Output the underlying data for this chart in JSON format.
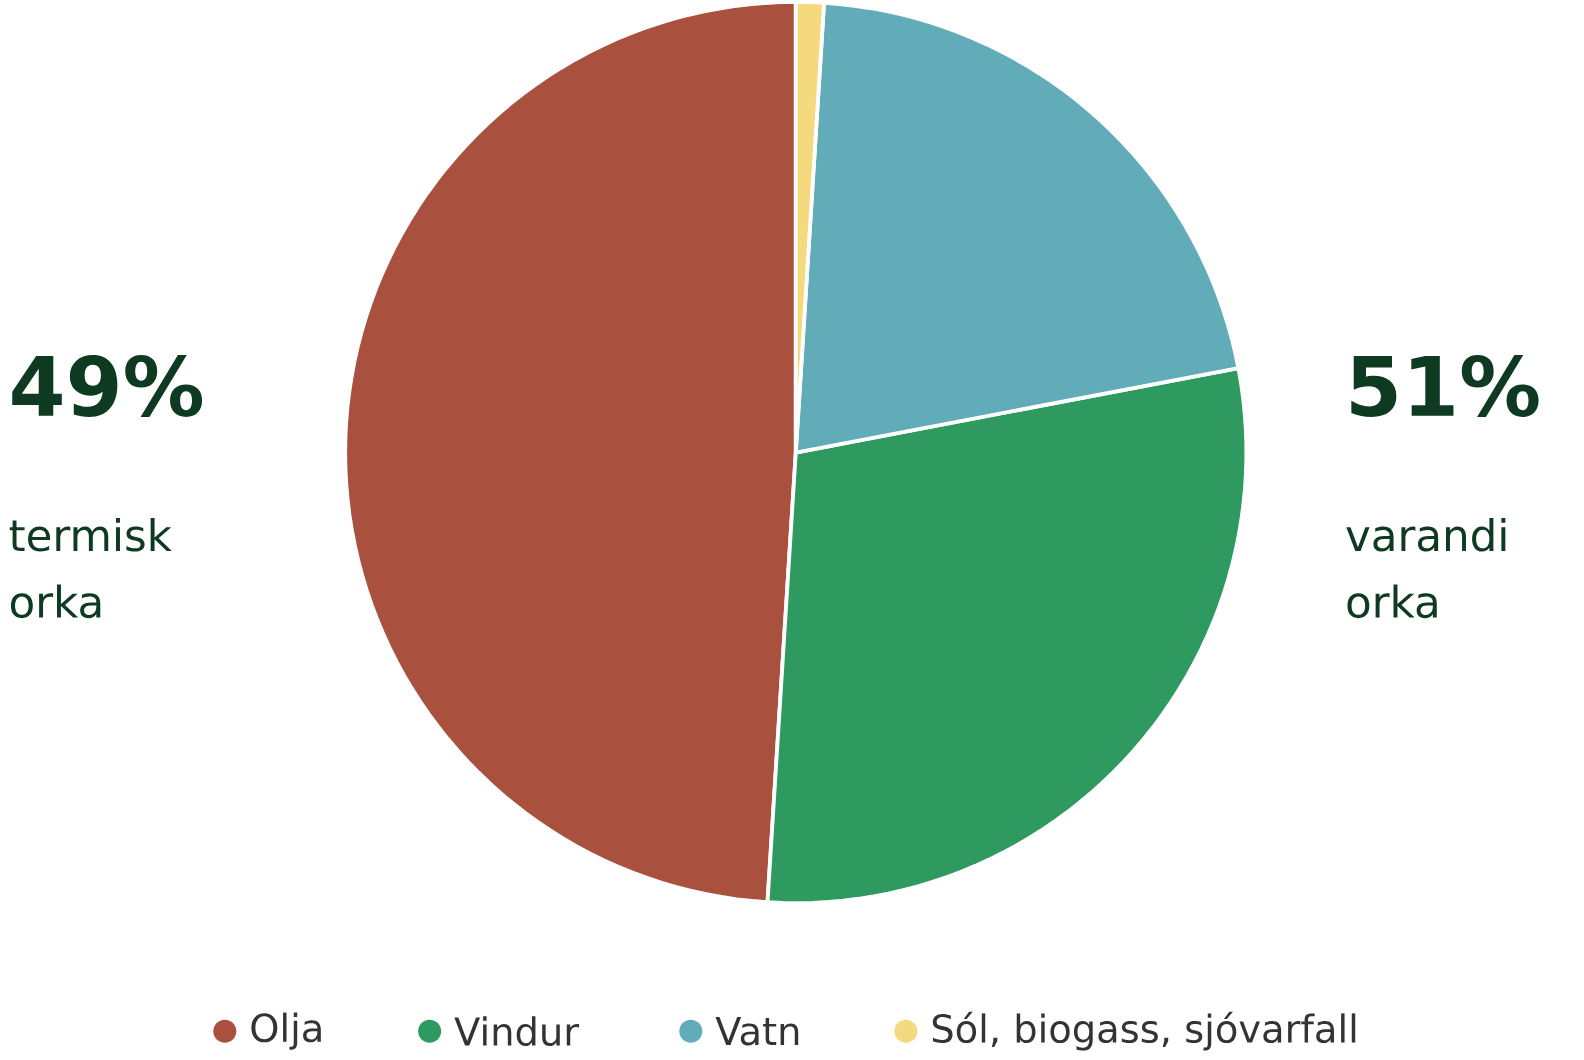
{
  "chart_data": {
    "type": "pie",
    "categories": [
      "Olja",
      "Vindur",
      "Vatn",
      "Sól, biogass, sjóvarfall"
    ],
    "values": [
      49,
      29,
      21,
      1
    ],
    "colors": [
      "#a9503f",
      "#2f9a60",
      "#62acba",
      "#f4d97f"
    ],
    "legend": "bottom",
    "annotations": [
      "49%",
      "termisk orka",
      "51%",
      "varandi orka"
    ]
  }
}
